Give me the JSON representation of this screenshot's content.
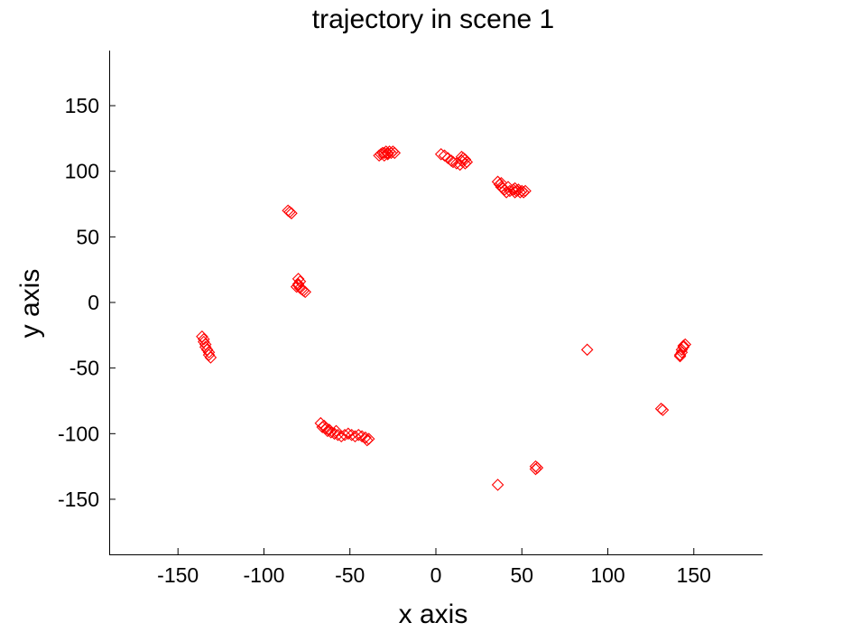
{
  "chart_data": {
    "type": "scatter",
    "title": "trajectory in scene 1",
    "xlabel": "x axis",
    "ylabel": "y axis",
    "xlim": [
      -190,
      190
    ],
    "ylim": [
      -192,
      192
    ],
    "xticks": [
      -150,
      -100,
      -50,
      0,
      50,
      100,
      150
    ],
    "yticks": [
      -150,
      -100,
      -50,
      0,
      50,
      100,
      150
    ],
    "xtick_labels": [
      "-150",
      "-100",
      "-50",
      "0",
      "50",
      "100",
      "150"
    ],
    "ytick_labels": [
      "-150",
      "-100",
      "-50",
      "0",
      "50",
      "100",
      "150"
    ],
    "grid": false,
    "marker": "diamond-open",
    "color": "#ff0000",
    "series": [
      {
        "points": [
          [
            -33,
            112
          ],
          [
            -32,
            113
          ],
          [
            -31,
            114
          ],
          [
            -30,
            114
          ],
          [
            -29,
            115
          ],
          [
            -28,
            114
          ],
          [
            -27,
            115
          ],
          [
            -26,
            114
          ],
          [
            -25,
            115
          ],
          [
            -24,
            114
          ],
          [
            -30,
            112
          ],
          [
            -28,
            113
          ],
          [
            3,
            113
          ],
          [
            5,
            112
          ],
          [
            7,
            110
          ],
          [
            9,
            108
          ],
          [
            10,
            107
          ],
          [
            12,
            106
          ],
          [
            14,
            105
          ],
          [
            15,
            108
          ],
          [
            16,
            110
          ],
          [
            17,
            109
          ],
          [
            18,
            107
          ],
          [
            15,
            111
          ],
          [
            17,
            106
          ],
          [
            36,
            92
          ],
          [
            37,
            90
          ],
          [
            38,
            88
          ],
          [
            39,
            87
          ],
          [
            40,
            86
          ],
          [
            41,
            84
          ],
          [
            43,
            85
          ],
          [
            45,
            86
          ],
          [
            46,
            84
          ],
          [
            47,
            85
          ],
          [
            48,
            86
          ],
          [
            49,
            84
          ],
          [
            50,
            85
          ],
          [
            51,
            84
          ],
          [
            52,
            85
          ],
          [
            38,
            91
          ],
          [
            42,
            88
          ],
          [
            46,
            87
          ],
          [
            -86,
            70
          ],
          [
            -85,
            69
          ],
          [
            -84,
            68
          ],
          [
            -80,
            18
          ],
          [
            -79,
            16
          ],
          [
            -80,
            14
          ],
          [
            -81,
            12
          ],
          [
            -79,
            11
          ],
          [
            -78,
            10
          ],
          [
            -77,
            9
          ],
          [
            -76,
            8
          ],
          [
            -80,
            13
          ],
          [
            -136,
            -26
          ],
          [
            -135,
            -28
          ],
          [
            -135,
            -30
          ],
          [
            -134,
            -32
          ],
          [
            -134,
            -34
          ],
          [
            -133,
            -36
          ],
          [
            -132,
            -38
          ],
          [
            -132,
            -40
          ],
          [
            -131,
            -42
          ],
          [
            -67,
            -92
          ],
          [
            -65,
            -94
          ],
          [
            -64,
            -96
          ],
          [
            -63,
            -98
          ],
          [
            -61,
            -99
          ],
          [
            -59,
            -100
          ],
          [
            -57,
            -101
          ],
          [
            -55,
            -102
          ],
          [
            -53,
            -101
          ],
          [
            -51,
            -100
          ],
          [
            -49,
            -101
          ],
          [
            -47,
            -102
          ],
          [
            -45,
            -101
          ],
          [
            -43,
            -102
          ],
          [
            -41,
            -103
          ],
          [
            -39,
            -104
          ],
          [
            -40,
            -105
          ],
          [
            -66,
            -95
          ],
          [
            -62,
            -97
          ],
          [
            -58,
            -98
          ],
          [
            88,
            -36
          ],
          [
            145,
            -32
          ],
          [
            144,
            -34
          ],
          [
            143,
            -36
          ],
          [
            143,
            -38
          ],
          [
            142,
            -40
          ],
          [
            142,
            -41
          ],
          [
            144,
            -33
          ],
          [
            131,
            -81
          ],
          [
            132,
            -82
          ],
          [
            58,
            -125
          ],
          [
            59,
            -126
          ],
          [
            58,
            -127
          ],
          [
            36,
            -139
          ]
        ]
      }
    ]
  }
}
